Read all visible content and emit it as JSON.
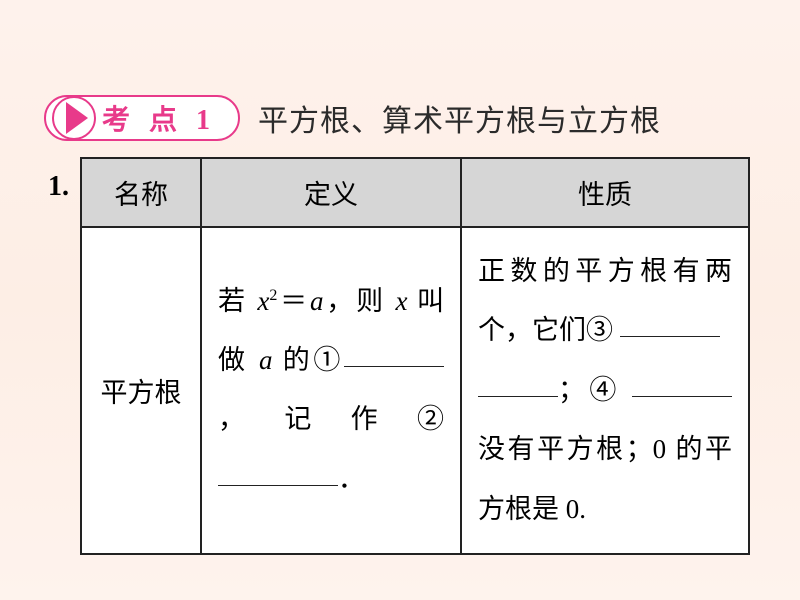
{
  "badge": {
    "label": "考 点 1"
  },
  "heading": "平方根、算术平方根与立方根",
  "rowNumber": "1.",
  "table": {
    "headers": {
      "c1": "名称",
      "c2": "定义",
      "c3": "性质"
    },
    "row": {
      "name": "平方根",
      "def_p1a": "若 ",
      "def_p1b": "＝",
      "def_p1c": "，则 ",
      "def_p1d": " 叫做 ",
      "def_p2a": " 的①",
      "def_p2b": "，记作②",
      "def_p2c": "．",
      "prop_p1": "正数的平方根有两个，它们③ ",
      "prop_p2a": "；④ ",
      "prop_p2b": "没有平方根；0 的平方根是 0.",
      "x": "x",
      "a": "a",
      "sq": "2"
    }
  },
  "colors": {
    "accent": "#e83a8a",
    "bg_gradient_top": "#fef2ec",
    "bg_gradient_bottom": "#fef3ed",
    "header_bg": "#d6d6d6",
    "border": "#222222"
  }
}
